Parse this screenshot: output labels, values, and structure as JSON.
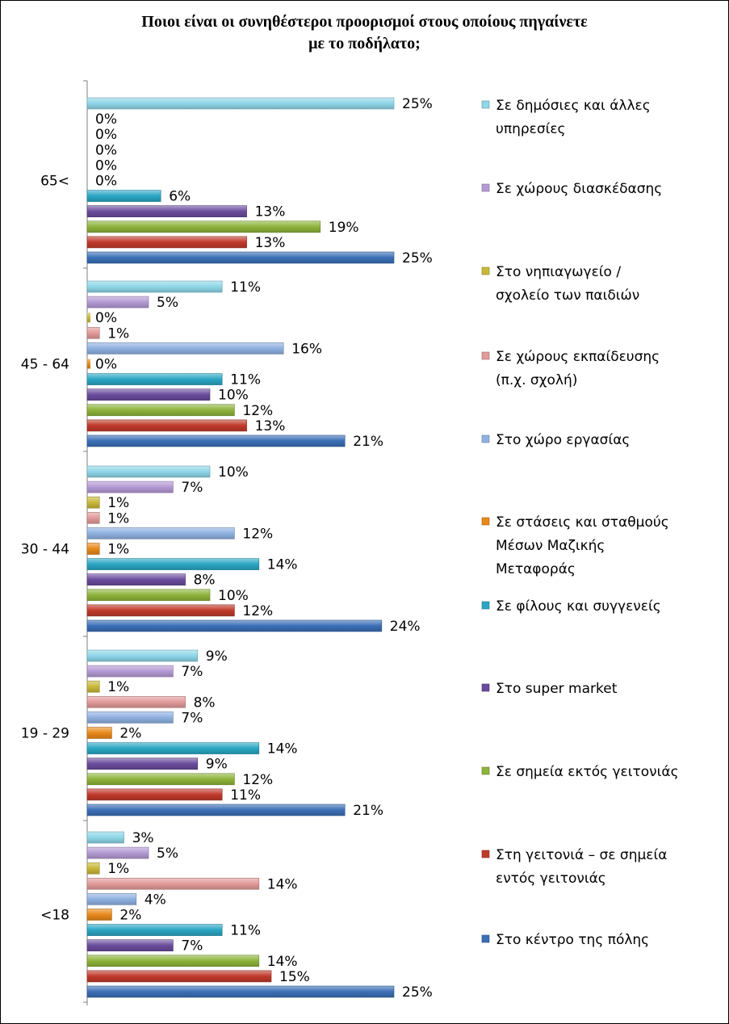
{
  "chart_data": {
    "type": "bar",
    "orientation": "horizontal",
    "title_lines": [
      "Ποιοι είναι οι συνηθέστεροι προορισμοί στους οποίους πηγαίνετε",
      "με το ποδήλατο;"
    ],
    "categories": [
      "<18",
      "19 - 29",
      "30 - 44",
      "45 - 64",
      "65<"
    ],
    "value_suffix": "%",
    "xlim": [
      0,
      25
    ],
    "grid": false,
    "legend_position": "right",
    "series": [
      {
        "name": "Στο κέντρο της πόλης",
        "color": "#3b6fb6",
        "values": [
          25,
          21,
          24,
          21,
          25
        ]
      },
      {
        "name": "Στη γειτονιά – σε σημεία εντός γειτονιάς",
        "color": "#c0392b",
        "values": [
          15,
          11,
          12,
          13,
          13
        ]
      },
      {
        "name": "Σε σημεία εκτός γειτονιάς",
        "color": "#8db33a",
        "values": [
          14,
          12,
          10,
          12,
          19
        ]
      },
      {
        "name": "Στο super market",
        "color": "#6a4c9c",
        "values": [
          7,
          9,
          8,
          10,
          13
        ]
      },
      {
        "name": "Σε φίλους και συγγενείς",
        "color": "#2aa6c4",
        "values": [
          11,
          14,
          14,
          11,
          6
        ]
      },
      {
        "name": "Σε στάσεις και σταθμούς Μέσων Μαζικής Μεταφοράς",
        "color": "#e8891a",
        "values": [
          2,
          2,
          1,
          0,
          0
        ]
      },
      {
        "name": "Στο χώρο εργασίας",
        "color": "#8fb1e0",
        "values": [
          4,
          7,
          12,
          16,
          0
        ]
      },
      {
        "name": "Σε χώρους εκπαίδευσης (π.χ. σχολή)",
        "color": "#e29a9a",
        "values": [
          14,
          8,
          1,
          1,
          0
        ]
      },
      {
        "name": "Στο νηπιαγωγείο / σχολείο των παιδιών",
        "color": "#c9b83a",
        "values": [
          1,
          1,
          1,
          0,
          0
        ]
      },
      {
        "name": "Σε χώρους διασκέδασης",
        "color": "#b49ad4",
        "values": [
          5,
          7,
          7,
          5,
          0
        ]
      },
      {
        "name": "Σε δημόσιες και άλλες υπηρεσίες",
        "color": "#8ed6e8",
        "values": [
          3,
          9,
          10,
          11,
          25
        ]
      }
    ],
    "legend_lines": [
      [
        "Σε δημόσιες και άλλες",
        "υπηρεσίες"
      ],
      [
        "Σε χώρους διασκέδασης"
      ],
      [
        "Στο νηπιαγωγείο /",
        "σχολείο των παιδιών"
      ],
      [
        "Σε χώρους εκπαίδευσης",
        "(π.χ. σχολή)"
      ],
      [
        "Στο χώρο εργασίας"
      ],
      [
        "Σε στάσεις και σταθμούς",
        "Μέσων Μαζικής",
        "Μεταφοράς"
      ],
      [
        "Σε φίλους και συγγενείς"
      ],
      [
        "Στο super market"
      ],
      [
        "Σε σημεία εκτός γειτονιάς"
      ],
      [
        "Στη γειτονιά – σε σημεία",
        "εντός γειτονιάς"
      ],
      [
        "Στο κέντρο της πόλης"
      ]
    ]
  }
}
